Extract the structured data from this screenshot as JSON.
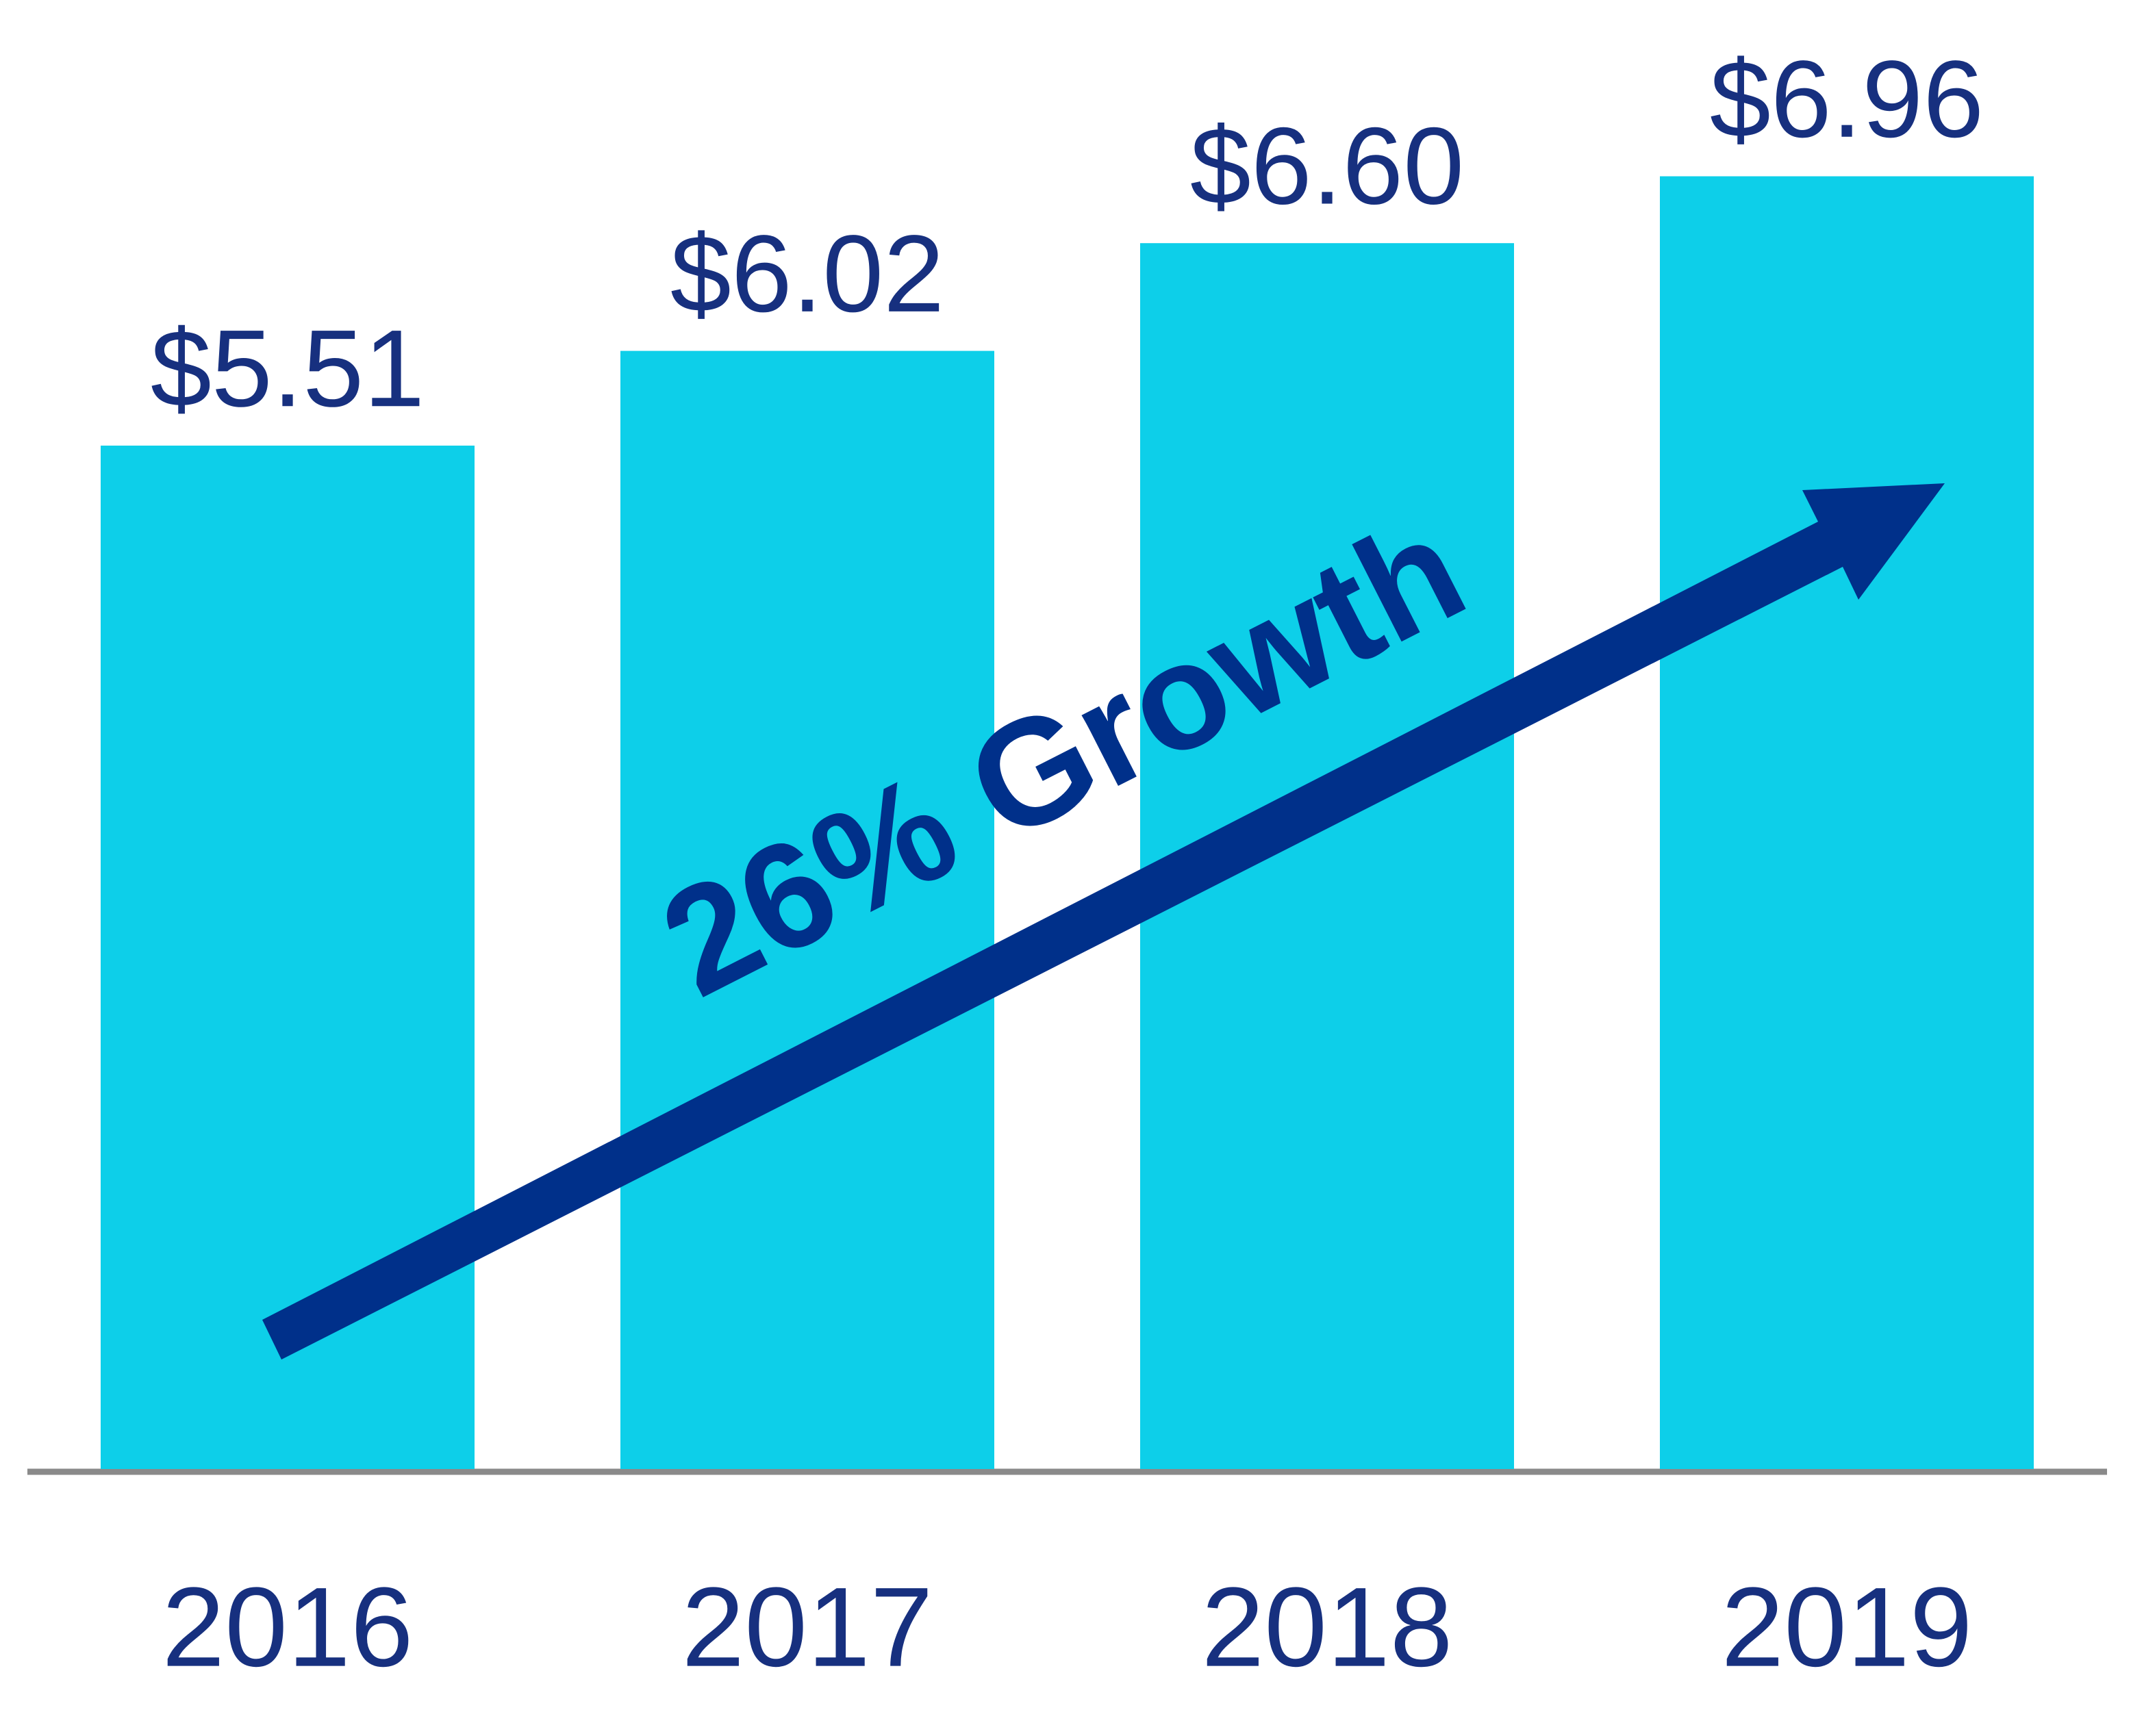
{
  "chart_data": {
    "type": "bar",
    "categories": [
      "2016",
      "2017",
      "2018",
      "2019"
    ],
    "values": [
      5.51,
      6.02,
      6.6,
      6.96
    ],
    "value_labels": [
      "$5.51",
      "$6.02",
      "$6.60",
      "$6.96"
    ],
    "color": "#0dcfe9",
    "ylim": [
      0,
      7.5
    ],
    "annotation": "26% Growth"
  }
}
